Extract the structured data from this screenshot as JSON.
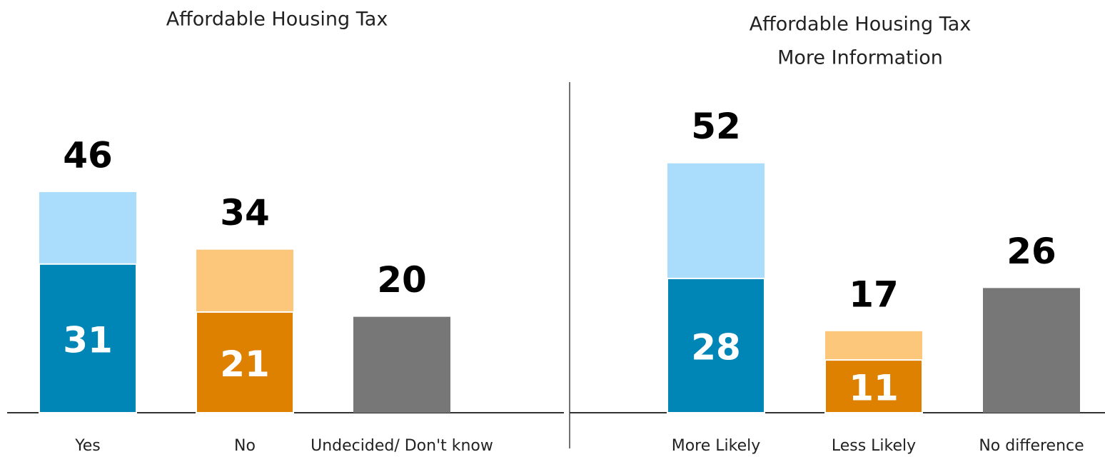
{
  "chart_data": [
    {
      "type": "bar",
      "barmode": "overlay",
      "title": [
        "Affordable Housing Tax"
      ],
      "categories": [
        "Yes",
        "No",
        "Undecided/ Don't know"
      ],
      "series": [
        {
          "values": [
            46,
            34,
            20
          ],
          "colors": [
            "#aadcfb",
            "#fdc77b",
            "#777777"
          ]
        },
        {
          "values": [
            31,
            21,
            null
          ],
          "colors": [
            "#0086b6",
            "#de8000",
            "#777777"
          ]
        }
      ],
      "ylim": [
        0,
        60
      ]
    },
    {
      "type": "bar",
      "barmode": "overlay",
      "title": [
        "Affordable Housing Tax",
        "More Information"
      ],
      "categories": [
        "More Likely",
        "Less Likely",
        "No difference"
      ],
      "series": [
        {
          "values": [
            52,
            17,
            26
          ],
          "colors": [
            "#aadcfb",
            "#fdc77b",
            "#777777"
          ]
        },
        {
          "values": [
            28,
            11,
            null
          ],
          "colors": [
            "#0086b6",
            "#de8000",
            "#777777"
          ]
        }
      ],
      "ylim": [
        0,
        60
      ]
    }
  ]
}
